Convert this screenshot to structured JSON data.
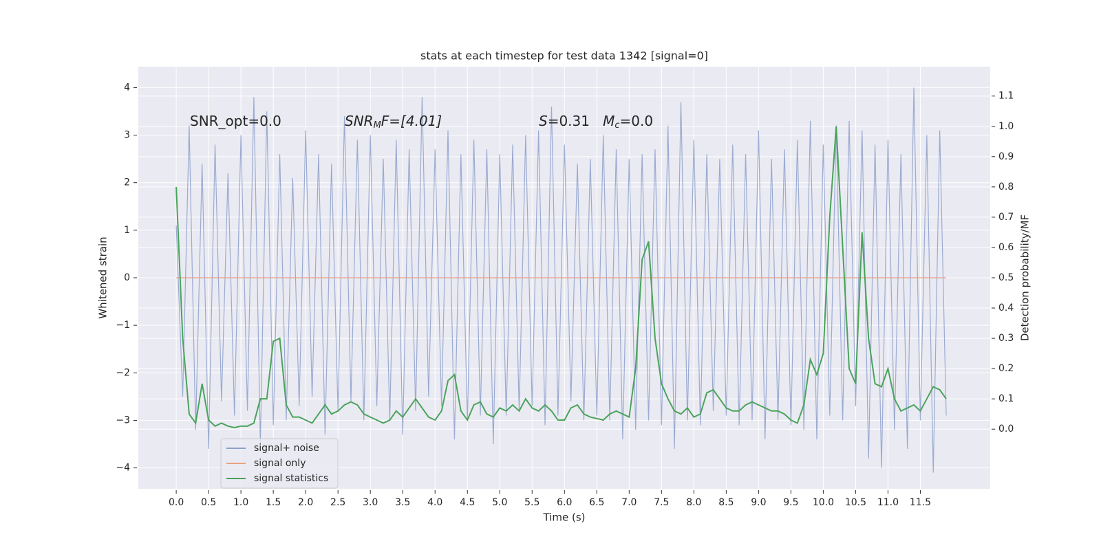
{
  "chart_data": {
    "type": "line",
    "title": "stats at each timestep for test data 1342 [signal=0]",
    "xlabel": "Time (s)",
    "ylabel": "Whitened strain",
    "y2label": "Detection probability/MF",
    "annotations": [
      [
        "SNR_opt=0.0"
      ],
      [
        "SNR",
        "M",
        "F=[4.01]"
      ],
      [
        "S",
        "=0.31   ",
        "M",
        "c",
        "=0.0"
      ]
    ],
    "xlim": [
      -0.586,
      12.58
    ],
    "ylim": [
      -4.44,
      4.44
    ],
    "y2lim": [
      -0.197,
      1.197
    ],
    "xticks": [
      {
        "value": 0,
        "label": "0.0"
      },
      0.5,
      {
        "value": 1,
        "label": "1.0"
      },
      1.5,
      {
        "value": 2,
        "label": "2.0"
      },
      2.5,
      {
        "value": 3,
        "label": "3.0"
      },
      3.5,
      {
        "value": 4,
        "label": "4.0"
      },
      4.5,
      {
        "value": 5,
        "label": "5.0"
      },
      5.5,
      {
        "value": 6,
        "label": "6.0"
      },
      6.5,
      {
        "value": 7,
        "label": "7.0"
      },
      7.5,
      {
        "value": 8,
        "label": "8.0"
      },
      8.5,
      {
        "value": 9,
        "label": "9.0"
      },
      9.5,
      {
        "value": 10,
        "label": "10.0"
      },
      10.5,
      {
        "value": 11,
        "label": "11.0"
      },
      11.5
    ],
    "yticks": [
      {
        "value": -4,
        "label": "−4"
      },
      {
        "value": -3,
        "label": "−3"
      },
      {
        "value": -2,
        "label": "−2"
      },
      {
        "value": -1,
        "label": "−1"
      },
      0,
      1,
      2,
      3,
      4
    ],
    "y2ticks": [
      {
        "value": 0,
        "label": "0.0"
      },
      0.1,
      0.2,
      0.3,
      0.4,
      0.5,
      0.6,
      0.7,
      0.8,
      0.9,
      {
        "value": 1,
        "label": "1.0"
      },
      1.1
    ],
    "grid": true,
    "legend": "lower left",
    "series": [
      {
        "name": "signal+ noise",
        "color": "#8da0cb",
        "x": [
          0,
          0.1,
          0.2,
          0.3,
          0.4,
          0.5,
          0.6,
          0.7,
          0.8,
          0.9,
          1,
          1.1,
          1.2,
          1.3,
          1.4,
          1.5,
          1.6,
          1.7,
          1.8,
          1.9,
          2,
          2.1,
          2.2,
          2.3,
          2.4,
          2.5,
          2.6,
          2.7,
          2.8,
          2.9,
          3,
          3.1,
          3.2,
          3.3,
          3.4,
          3.5,
          3.6,
          3.7,
          3.8,
          3.9,
          4,
          4.1,
          4.2,
          4.3,
          4.4,
          4.5,
          4.6,
          4.7,
          4.8,
          4.9,
          5,
          5.1,
          5.2,
          5.3,
          5.4,
          5.5,
          5.6,
          5.7,
          5.8,
          5.9,
          6,
          6.1,
          6.2,
          6.3,
          6.4,
          6.5,
          6.6,
          6.7,
          6.8,
          6.9,
          7,
          7.1,
          7.2,
          7.3,
          7.4,
          7.5,
          7.6,
          7.7,
          7.8,
          7.9,
          8,
          8.1,
          8.2,
          8.3,
          8.4,
          8.5,
          8.6,
          8.7,
          8.8,
          8.9,
          9,
          9.1,
          9.2,
          9.3,
          9.4,
          9.5,
          9.6,
          9.7,
          9.8,
          9.9,
          10,
          10.1,
          10.2,
          10.3,
          10.4,
          10.5,
          10.6,
          10.7,
          10.8,
          10.9,
          11,
          11.1,
          11.2,
          11.3,
          11.4,
          11.5,
          11.6,
          11.7,
          11.8,
          11.9
        ],
        "values": [
          1.1,
          -2.5,
          3.2,
          -3.2,
          2.4,
          -3.6,
          2.8,
          -2.6,
          2.2,
          -2.9,
          3.0,
          -2.8,
          3.8,
          -3.5,
          3.5,
          -3.1,
          2.6,
          -3.0,
          2.1,
          -2.7,
          3.1,
          -2.5,
          2.6,
          -3.3,
          2.4,
          -2.8,
          3.4,
          -2.6,
          2.9,
          -3.0,
          3.0,
          -2.7,
          2.5,
          -3.0,
          2.9,
          -3.3,
          2.7,
          -2.8,
          3.8,
          -2.5,
          2.7,
          -2.7,
          3.1,
          -3.4,
          2.6,
          -3.0,
          2.9,
          -2.9,
          2.7,
          -3.5,
          2.6,
          -2.9,
          2.8,
          -2.8,
          3.0,
          -2.7,
          3.1,
          -3.1,
          3.6,
          -2.9,
          2.8,
          -2.6,
          2.4,
          -3.0,
          2.5,
          -2.9,
          3.0,
          -3.0,
          2.7,
          -3.4,
          2.5,
          -3.2,
          2.6,
          -3.0,
          2.7,
          -3.1,
          3.2,
          -3.6,
          3.7,
          -3.0,
          2.9,
          -3.1,
          2.6,
          -2.8,
          2.5,
          -2.9,
          2.8,
          -3.1,
          2.6,
          -3.0,
          3.1,
          -3.4,
          2.5,
          -3.0,
          2.7,
          -3.1,
          2.9,
          -3.2,
          3.3,
          -3.4,
          2.8,
          -2.9,
          3.2,
          -3.0,
          3.3,
          -2.7,
          3.1,
          -3.8,
          2.8,
          -4.0,
          2.9,
          -3.2,
          2.6,
          -3.6,
          4.0,
          -3.0,
          3.0,
          -4.1,
          3.1,
          -2.9
        ],
        "axis": "y"
      },
      {
        "name": "signal only",
        "color": "#e8a182",
        "x": [
          0,
          11.9
        ],
        "values": [
          0,
          0
        ],
        "axis": "y"
      },
      {
        "name": "signal statistics",
        "color": "#4aa35b",
        "x": [
          0,
          0.1,
          0.2,
          0.3,
          0.4,
          0.5,
          0.6,
          0.7,
          0.8,
          0.9,
          1,
          1.1,
          1.2,
          1.3,
          1.4,
          1.5,
          1.6,
          1.7,
          1.8,
          1.9,
          2,
          2.1,
          2.2,
          2.3,
          2.4,
          2.5,
          2.6,
          2.7,
          2.8,
          2.9,
          3,
          3.1,
          3.2,
          3.3,
          3.4,
          3.5,
          3.6,
          3.7,
          3.8,
          3.9,
          4,
          4.1,
          4.2,
          4.3,
          4.4,
          4.5,
          4.6,
          4.7,
          4.8,
          4.9,
          5,
          5.1,
          5.2,
          5.3,
          5.4,
          5.5,
          5.6,
          5.7,
          5.8,
          5.9,
          6,
          6.1,
          6.2,
          6.3,
          6.4,
          6.5,
          6.6,
          6.7,
          6.8,
          6.9,
          7,
          7.1,
          7.2,
          7.3,
          7.4,
          7.5,
          7.6,
          7.7,
          7.8,
          7.9,
          8,
          8.1,
          8.2,
          8.3,
          8.4,
          8.5,
          8.6,
          8.7,
          8.8,
          8.9,
          9,
          9.1,
          9.2,
          9.3,
          9.4,
          9.5,
          9.6,
          9.7,
          9.8,
          9.9,
          10,
          10.1,
          10.2,
          10.3,
          10.4,
          10.5,
          10.6,
          10.7,
          10.8,
          10.9,
          11,
          11.1,
          11.2,
          11.3,
          11.4,
          11.5,
          11.6,
          11.7,
          11.8,
          11.9
        ],
        "values": [
          0.8,
          0.3,
          0.05,
          0.02,
          0.15,
          0.03,
          0.01,
          0.02,
          0.01,
          0.005,
          0.01,
          0.01,
          0.02,
          0.1,
          0.1,
          0.29,
          0.3,
          0.08,
          0.04,
          0.04,
          0.03,
          0.02,
          0.05,
          0.08,
          0.05,
          0.06,
          0.08,
          0.09,
          0.08,
          0.05,
          0.04,
          0.03,
          0.02,
          0.03,
          0.06,
          0.04,
          0.07,
          0.1,
          0.07,
          0.04,
          0.03,
          0.06,
          0.16,
          0.18,
          0.06,
          0.03,
          0.08,
          0.09,
          0.05,
          0.04,
          0.07,
          0.06,
          0.08,
          0.06,
          0.1,
          0.07,
          0.06,
          0.08,
          0.06,
          0.03,
          0.03,
          0.07,
          0.08,
          0.05,
          0.04,
          0.035,
          0.03,
          0.05,
          0.06,
          0.05,
          0.04,
          0.2,
          0.56,
          0.62,
          0.3,
          0.15,
          0.1,
          0.06,
          0.05,
          0.07,
          0.04,
          0.05,
          0.12,
          0.13,
          0.1,
          0.07,
          0.06,
          0.06,
          0.08,
          0.09,
          0.08,
          0.07,
          0.06,
          0.06,
          0.05,
          0.03,
          0.02,
          0.08,
          0.23,
          0.18,
          0.25,
          0.7,
          1.0,
          0.6,
          0.2,
          0.15,
          0.65,
          0.3,
          0.15,
          0.14,
          0.2,
          0.1,
          0.06,
          0.07,
          0.08,
          0.06,
          0.1,
          0.14,
          0.13,
          0.1
        ],
        "axis": "y2"
      }
    ]
  }
}
